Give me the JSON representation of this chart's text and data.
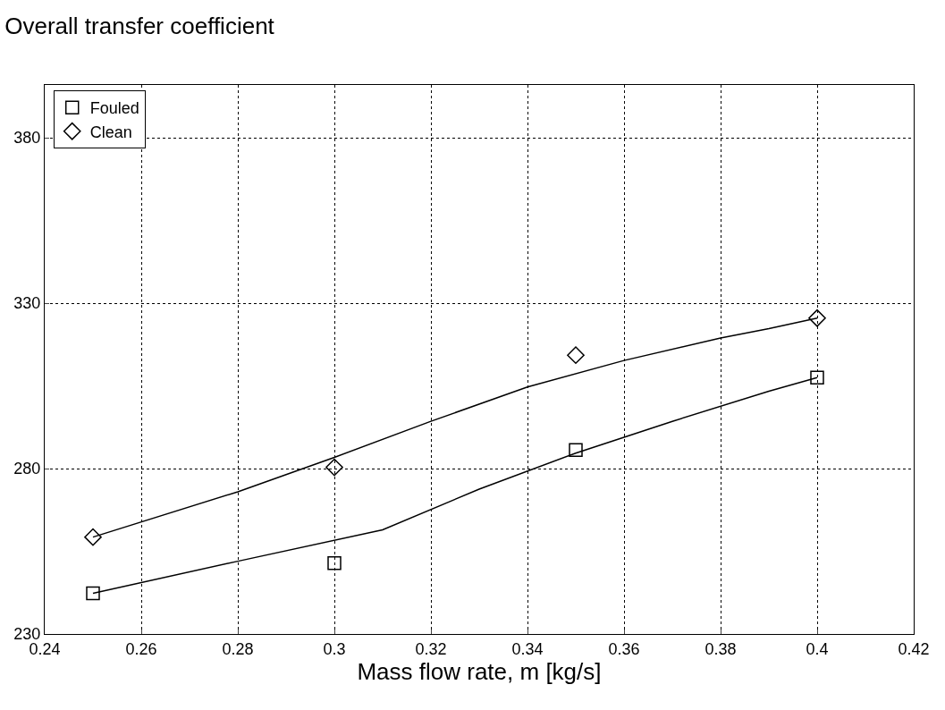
{
  "chart_data": {
    "type": "scatter",
    "title": "Overall transfer coefficient",
    "xlabel": "Mass flow rate, m [kg/s]",
    "series": [
      {
        "name": "Fouled",
        "marker": "square",
        "color": "#000000",
        "x": [
          0.25,
          0.3,
          0.35,
          0.4
        ],
        "values": [
          242.3,
          251.4,
          285.6,
          307.5
        ]
      },
      {
        "name": "Clean",
        "marker": "diamond",
        "color": "#000000",
        "x": [
          0.25,
          0.3,
          0.35,
          0.4
        ],
        "values": [
          259.3,
          280.4,
          314.3,
          325.5
        ]
      },
      {
        "type": "line",
        "color": "#000000",
        "x": [
          0.25,
          0.28,
          0.31,
          0.33,
          0.35,
          0.37,
          0.39,
          0.4
        ],
        "values": [
          242.3,
          252,
          261.5,
          273.8,
          284.7,
          294.3,
          303.4,
          307.5
        ]
      },
      {
        "type": "line",
        "color": "#000000",
        "x": [
          0.25,
          0.28,
          0.3,
          0.32,
          0.34,
          0.36,
          0.38,
          0.39,
          0.4
        ],
        "values": [
          259.3,
          273,
          283.4,
          294.3,
          304.7,
          312.7,
          319.5,
          322.3,
          325.5
        ]
      }
    ],
    "xlim": [
      0.24,
      0.42
    ],
    "xticks": [
      0.24,
      0.26,
      0.28,
      0.3,
      0.32,
      0.34,
      0.36,
      0.38,
      0.4,
      0.42
    ],
    "ylim": [
      230,
      396
    ],
    "yticks": [
      230,
      280,
      330,
      380
    ],
    "grid": true,
    "legend": "top left"
  }
}
